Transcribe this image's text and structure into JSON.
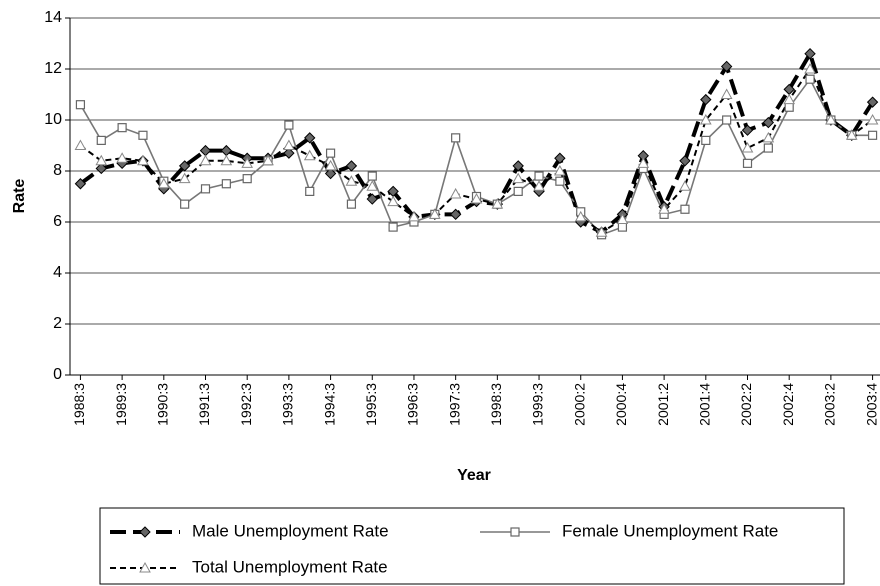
{
  "chart_data": {
    "type": "line",
    "xlabel": "Year",
    "ylabel": "Rate",
    "categories": [
      "1988:3",
      null,
      "1989:3",
      null,
      "1990:3",
      null,
      "1991:3",
      null,
      "1992:3",
      null,
      "1993:3",
      null,
      "1994:3",
      null,
      "1995:3",
      null,
      "1996:3",
      null,
      "1997:3",
      null,
      "1998:3",
      null,
      "1999:3",
      null,
      "2000:2",
      null,
      "2000:4",
      null,
      "2001:2",
      null,
      "2001:4",
      null,
      "2002:2",
      null,
      "2002:4",
      null,
      "2003:2",
      null,
      "2003:4"
    ],
    "series": [
      {
        "name": "Male Unemployment Rate",
        "color": "#000000",
        "marker": "diamond",
        "dash": "16,7",
        "width": 4,
        "values": [
          7.5,
          8.1,
          8.3,
          8.4,
          7.3,
          8.2,
          8.8,
          8.8,
          8.5,
          8.5,
          8.7,
          9.3,
          7.9,
          8.2,
          6.9,
          7.2,
          6.2,
          6.3,
          6.3,
          6.8,
          6.7,
          8.2,
          7.2,
          8.5,
          6.0,
          5.6,
          6.3,
          8.6,
          6.6,
          8.4,
          10.8,
          12.1,
          9.6,
          9.9,
          11.2,
          12.6,
          10.0,
          9.4,
          10.7
        ]
      },
      {
        "name": "Female Unemployment Rate",
        "color": "#777777",
        "marker": "square",
        "dash": "none",
        "width": 1.6,
        "values": [
          10.6,
          9.2,
          9.7,
          9.4,
          7.6,
          6.7,
          7.3,
          7.5,
          7.7,
          8.4,
          9.8,
          7.2,
          8.7,
          6.7,
          7.8,
          5.8,
          6.0,
          6.3,
          9.3,
          7.0,
          6.7,
          7.2,
          7.8,
          7.6,
          6.4,
          5.5,
          5.8,
          8.1,
          6.3,
          6.5,
          9.2,
          10.0,
          8.3,
          8.9,
          10.5,
          11.6,
          10.0,
          9.4,
          9.4
        ]
      },
      {
        "name": "Total Unemployment Rate",
        "color": "#000000",
        "marker": "triangle",
        "dash": "6,4",
        "width": 2,
        "values": [
          9.0,
          8.4,
          8.5,
          8.4,
          7.5,
          7.7,
          8.4,
          8.4,
          8.3,
          8.4,
          9.0,
          8.6,
          8.2,
          7.6,
          7.4,
          6.8,
          6.2,
          6.3,
          7.1,
          6.9,
          6.7,
          7.7,
          7.4,
          8.0,
          6.2,
          5.6,
          6.1,
          8.3,
          6.5,
          7.4,
          10.0,
          11.0,
          8.9,
          9.3,
          10.8,
          12.0,
          10.0,
          9.4,
          10.0
        ]
      }
    ],
    "ylim": [
      0,
      14
    ],
    "yticks": [
      0,
      2,
      4,
      6,
      8,
      10,
      12,
      14
    ],
    "grid": true
  }
}
